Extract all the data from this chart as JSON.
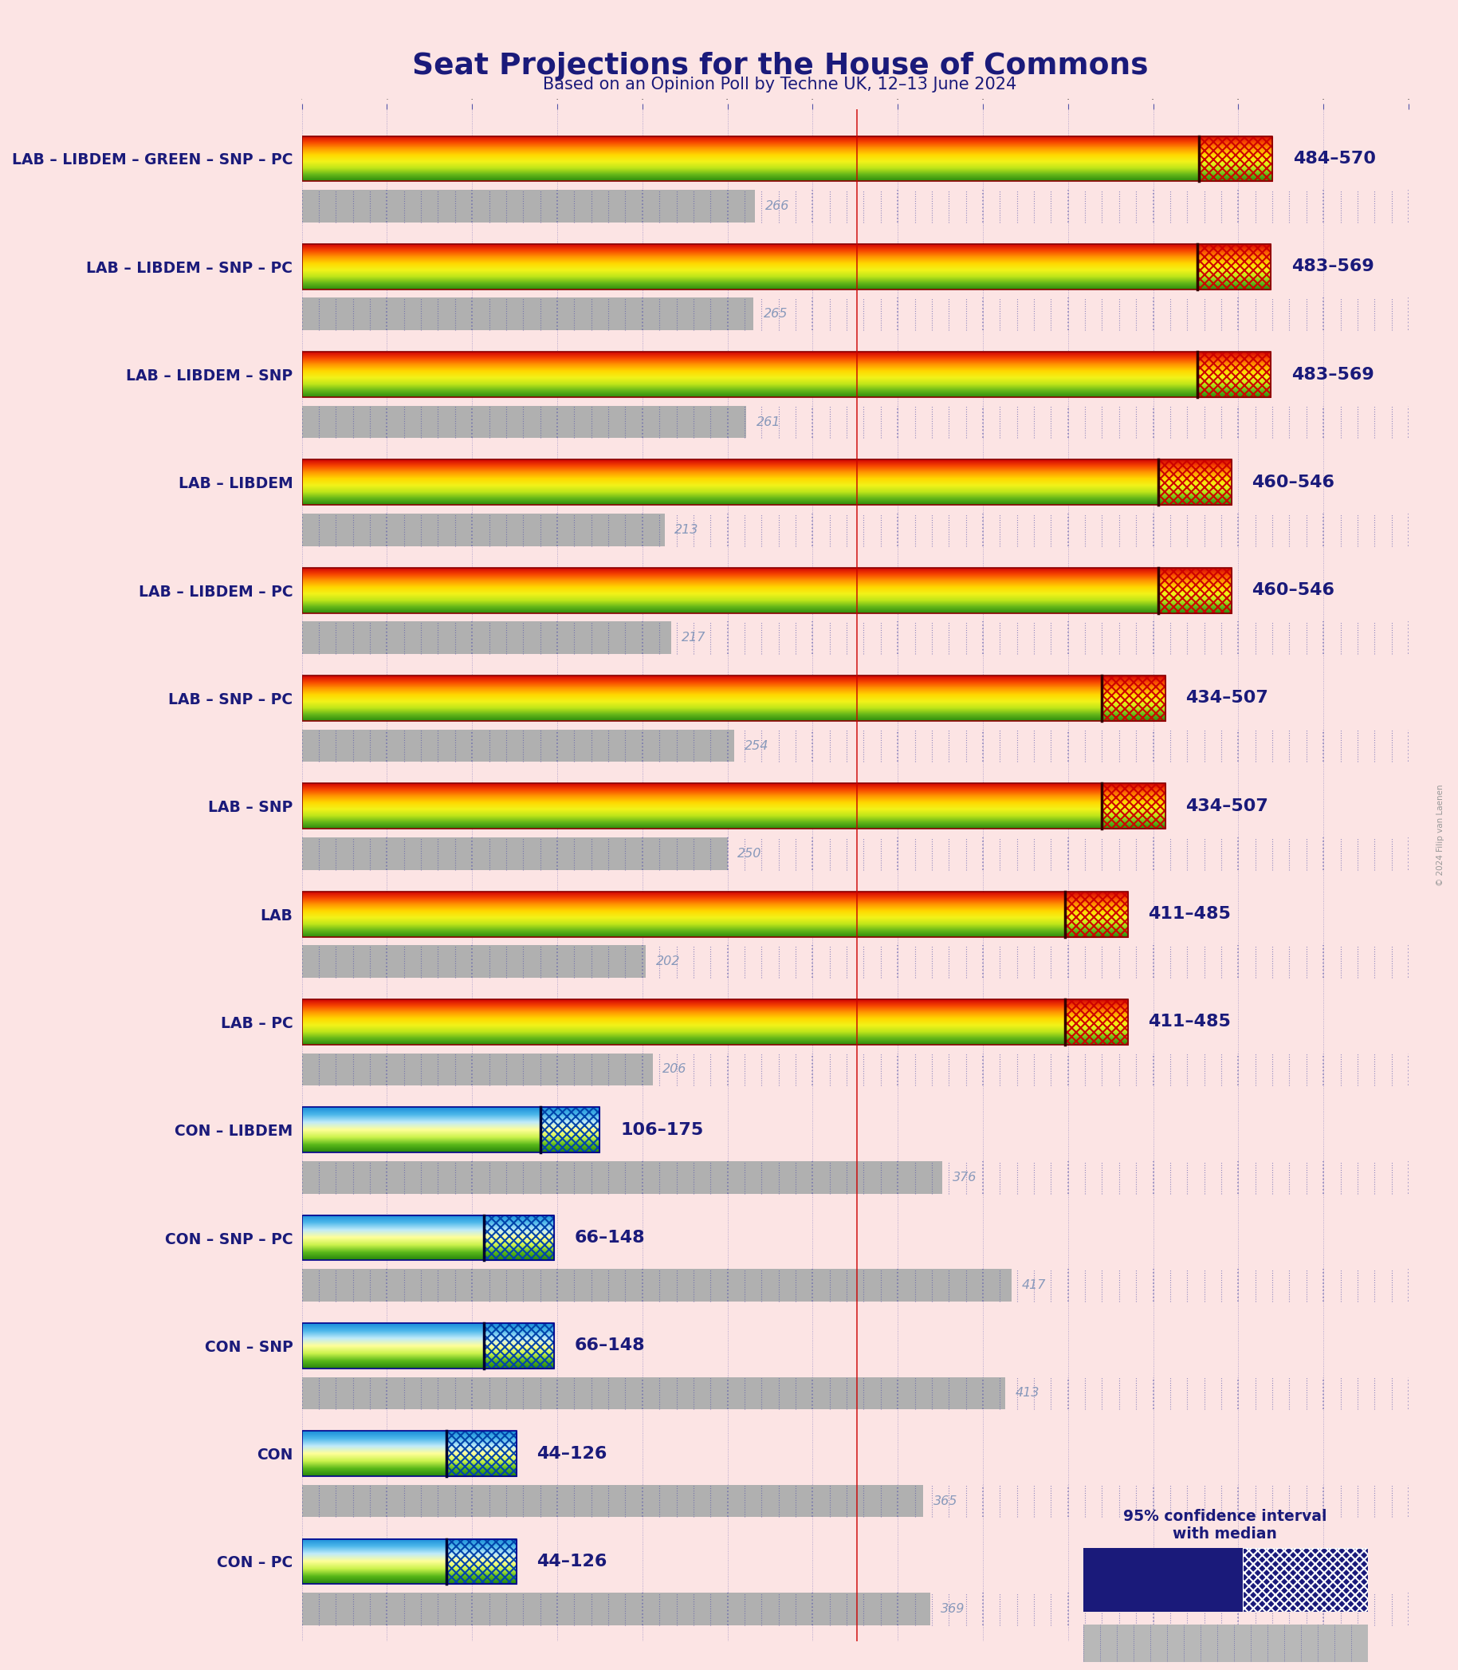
{
  "title": "Seat Projections for the House of Commons",
  "subtitle": "Based on an Opinion Poll by Techne UK, 12–13 June 2024",
  "background_color": "#fce4e4",
  "title_color": "#1a1a7a",
  "subtitle_color": "#1a1a7a",
  "copyright_text": "© 2024 Filip van Laenen",
  "coalitions": [
    "LAB – LIBDEM – GREEN – SNP – PC",
    "LAB – LIBDEM – SNP – PC",
    "LAB – LIBDEM – SNP",
    "LAB – LIBDEM",
    "LAB – LIBDEM – PC",
    "LAB – SNP – PC",
    "LAB – SNP",
    "LAB",
    "LAB – PC",
    "CON – LIBDEM",
    "CON – SNP – PC",
    "CON – SNP",
    "CON",
    "CON – PC"
  ],
  "range_low": [
    484,
    483,
    483,
    460,
    460,
    434,
    434,
    411,
    411,
    106,
    66,
    66,
    44,
    44
  ],
  "range_high": [
    570,
    569,
    569,
    546,
    546,
    507,
    507,
    485,
    485,
    175,
    148,
    148,
    126,
    126
  ],
  "median": [
    527,
    526,
    526,
    503,
    503,
    470,
    470,
    448,
    448,
    140,
    107,
    107,
    85,
    85
  ],
  "last_result": [
    266,
    265,
    261,
    213,
    217,
    254,
    250,
    202,
    206,
    376,
    417,
    413,
    365,
    369
  ],
  "majority": 326,
  "x_max": 650,
  "label_color_dark": "#1a1a7a",
  "label_color_light": "#8899aa"
}
